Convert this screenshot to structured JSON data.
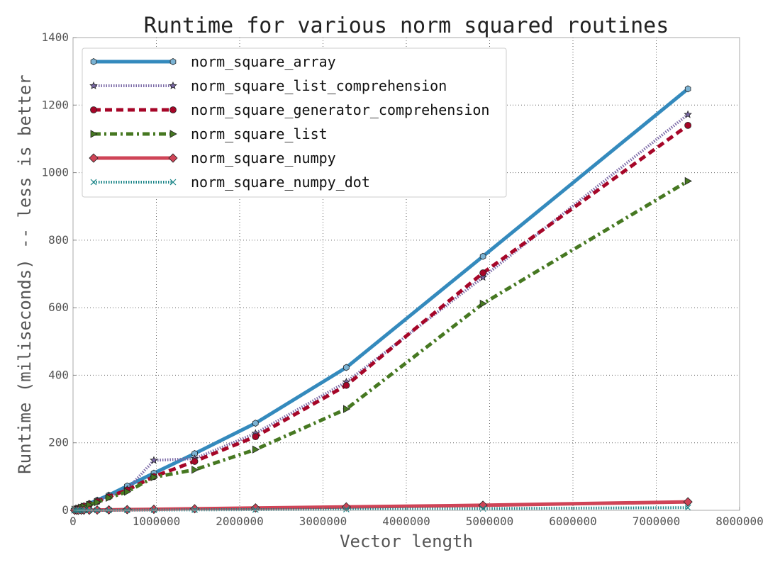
{
  "chart_data": {
    "type": "line",
    "title": "Runtime for various norm squared routines",
    "xlabel": "Vector length",
    "ylabel": "Runtime (miliseconds) -- less is better",
    "xlim": [
      0,
      8000000
    ],
    "ylim": [
      0,
      1400
    ],
    "x_ticks": [
      "0",
      "1000000",
      "2000000",
      "3000000",
      "4000000",
      "5000000",
      "6000000",
      "7000000",
      "8000000"
    ],
    "y_ticks": [
      "0",
      "200",
      "400",
      "600",
      "800",
      "1000",
      "1200",
      "1400"
    ],
    "grid": true,
    "legend_position": "top-left",
    "x": [
      20000,
      45000,
      65000,
      100000,
      130000,
      195000,
      290000,
      430000,
      650000,
      970000,
      1460000,
      2190000,
      3280000,
      4920000,
      7380000
    ],
    "series": [
      {
        "name": "norm_square_array",
        "color": "#348abd",
        "style": "solid",
        "marker": "hexagon",
        "values": [
          2,
          4,
          6,
          10,
          13,
          20,
          30,
          45,
          72,
          110,
          168,
          258,
          423,
          752,
          1248
        ]
      },
      {
        "name": "norm_square_list_comprehension",
        "color": "#7a68a6",
        "style": "dotted",
        "marker": "star",
        "values": [
          2,
          4,
          6,
          9,
          12,
          18,
          27,
          41,
          62,
          148,
          153,
          228,
          380,
          690,
          1172
        ]
      },
      {
        "name": "norm_square_generator_comprehension",
        "color": "#a60628",
        "style": "dashed",
        "marker": "circle",
        "values": [
          2,
          4,
          6,
          9,
          12,
          17,
          26,
          40,
          60,
          100,
          145,
          218,
          370,
          703,
          1140
        ]
      },
      {
        "name": "norm_square_list",
        "color": "#467821",
        "style": "dashdot",
        "marker": "triangle-right",
        "values": [
          2,
          3,
          5,
          8,
          11,
          16,
          24,
          37,
          55,
          98,
          120,
          180,
          300,
          612,
          975
        ]
      },
      {
        "name": "norm_square_numpy",
        "color": "#cf4457",
        "style": "solid",
        "marker": "diamond",
        "values": [
          0.1,
          0.1,
          0.2,
          0.3,
          0.4,
          0.5,
          0.8,
          1.2,
          2,
          3,
          4.5,
          7,
          10,
          15,
          25
        ]
      },
      {
        "name": "norm_square_numpy_dot",
        "color": "#188487",
        "style": "dotted",
        "marker": "x",
        "values": [
          0.05,
          0.05,
          0.1,
          0.1,
          0.1,
          0.2,
          0.3,
          0.4,
          0.6,
          0.9,
          1.4,
          2,
          3,
          5,
          8
        ]
      }
    ]
  }
}
